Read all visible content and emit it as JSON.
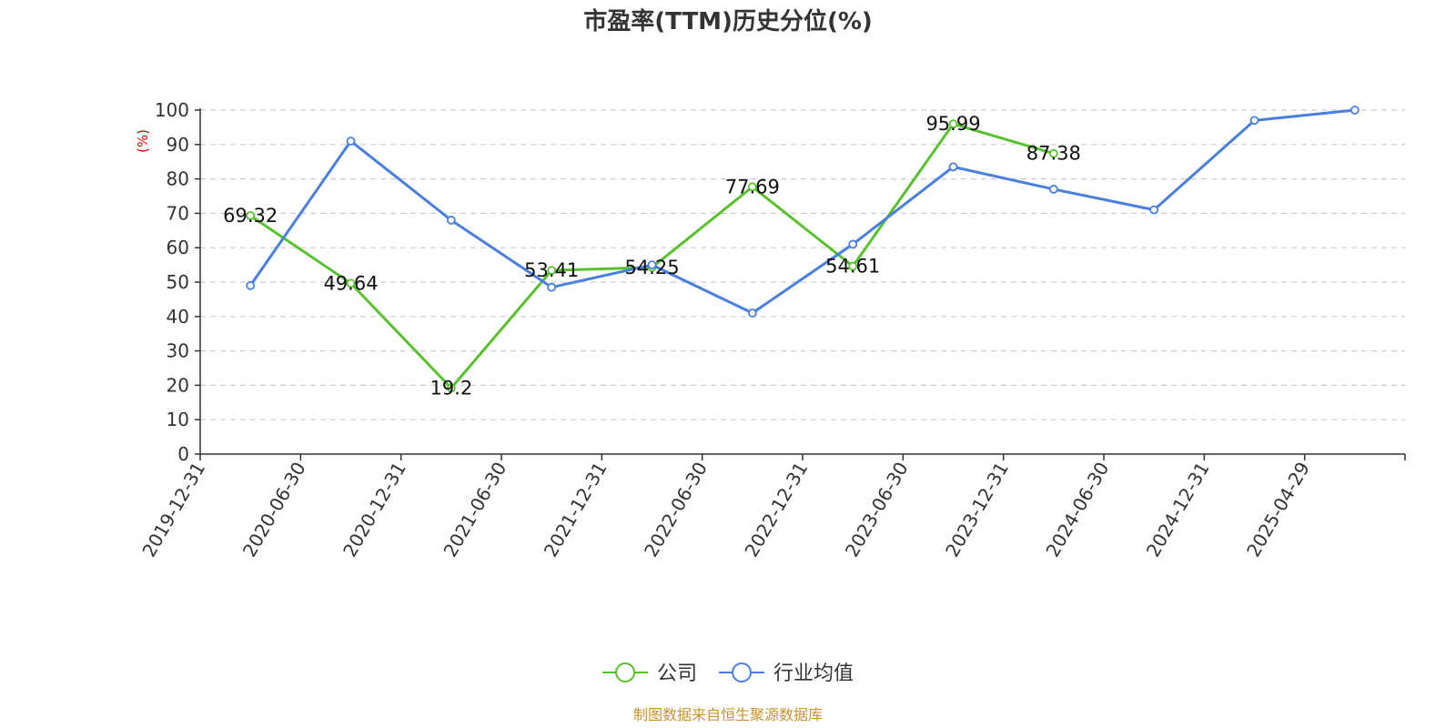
{
  "chart_data": {
    "type": "line",
    "title": "市盈率(TTM)历史分位(%)",
    "ylabel": "(%)",
    "xlabel": "",
    "ylim": [
      0,
      100
    ],
    "yticks": [
      0,
      10,
      20,
      30,
      40,
      50,
      60,
      70,
      80,
      90,
      100
    ],
    "grid": "horizontal-dashed",
    "legend_position": "bottom",
    "categories": [
      "2019-12-31",
      "2020-06-30",
      "2020-12-31",
      "2021-06-30",
      "2021-12-31",
      "2022-06-30",
      "2022-12-31",
      "2023-06-30",
      "2023-12-31",
      "2024-06-30",
      "2024-12-31",
      "2025-04-29"
    ],
    "series": [
      {
        "name": "公司",
        "color": "#58c22d",
        "values": [
          69.32,
          49.64,
          19.2,
          53.41,
          54.25,
          77.69,
          54.61,
          95.99,
          87.38,
          null,
          null,
          null
        ],
        "labels": [
          "69.32",
          "49.64",
          "19.2",
          "53.41",
          "54.25",
          "77.69",
          "54.61",
          "95.99",
          "87.38",
          null,
          null,
          null
        ]
      },
      {
        "name": "行业均值",
        "color": "#4a7fe0",
        "values": [
          49,
          91,
          68,
          48.5,
          55,
          41,
          61,
          83.5,
          77,
          71,
          97,
          100
        ]
      }
    ],
    "source": "制图数据来自恒生聚源数据库"
  }
}
